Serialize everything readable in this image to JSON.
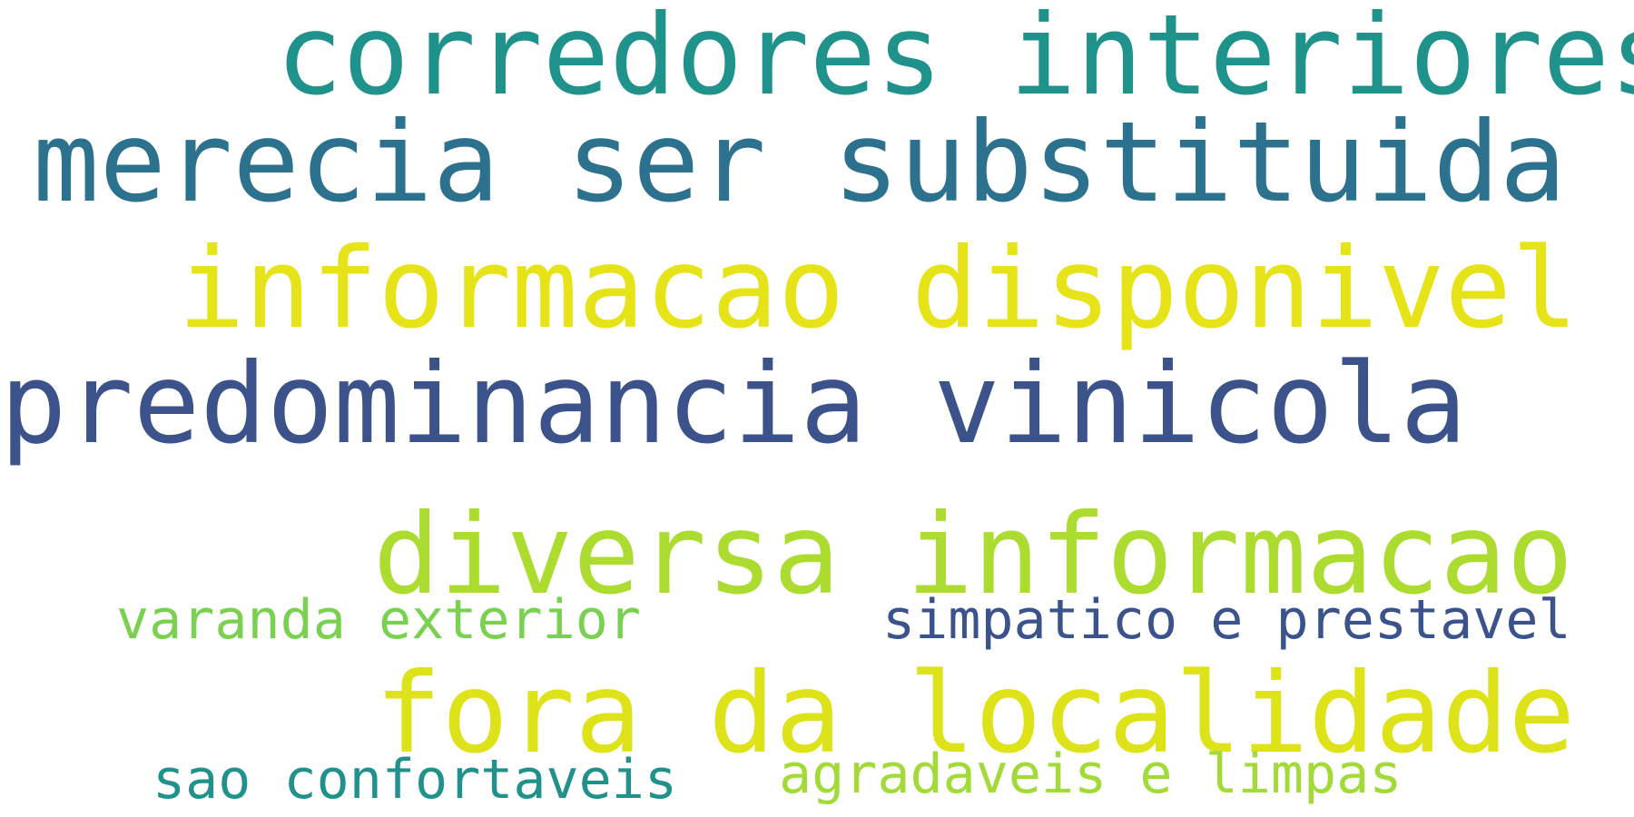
{
  "wordcloud": {
    "words": [
      {
        "text": "corredores interiores",
        "color": "#20928c"
      },
      {
        "text": "merecia ser substituida",
        "color": "#2c728e"
      },
      {
        "text": "informacao disponivel",
        "color": "#e6e419"
      },
      {
        "text": "predominancia vinicola",
        "color": "#3b528b"
      },
      {
        "text": "diversa informacao",
        "color": "#addc30"
      },
      {
        "text": "varanda exterior",
        "color": "#7ad151"
      },
      {
        "text": "simpatico e prestavel",
        "color": "#3b528b"
      },
      {
        "text": "fora da localidade",
        "color": "#dde318"
      },
      {
        "text": "sao confortaveis",
        "color": "#21918c"
      },
      {
        "text": "agradaveis e limpas",
        "color": "#a2da37"
      }
    ]
  }
}
